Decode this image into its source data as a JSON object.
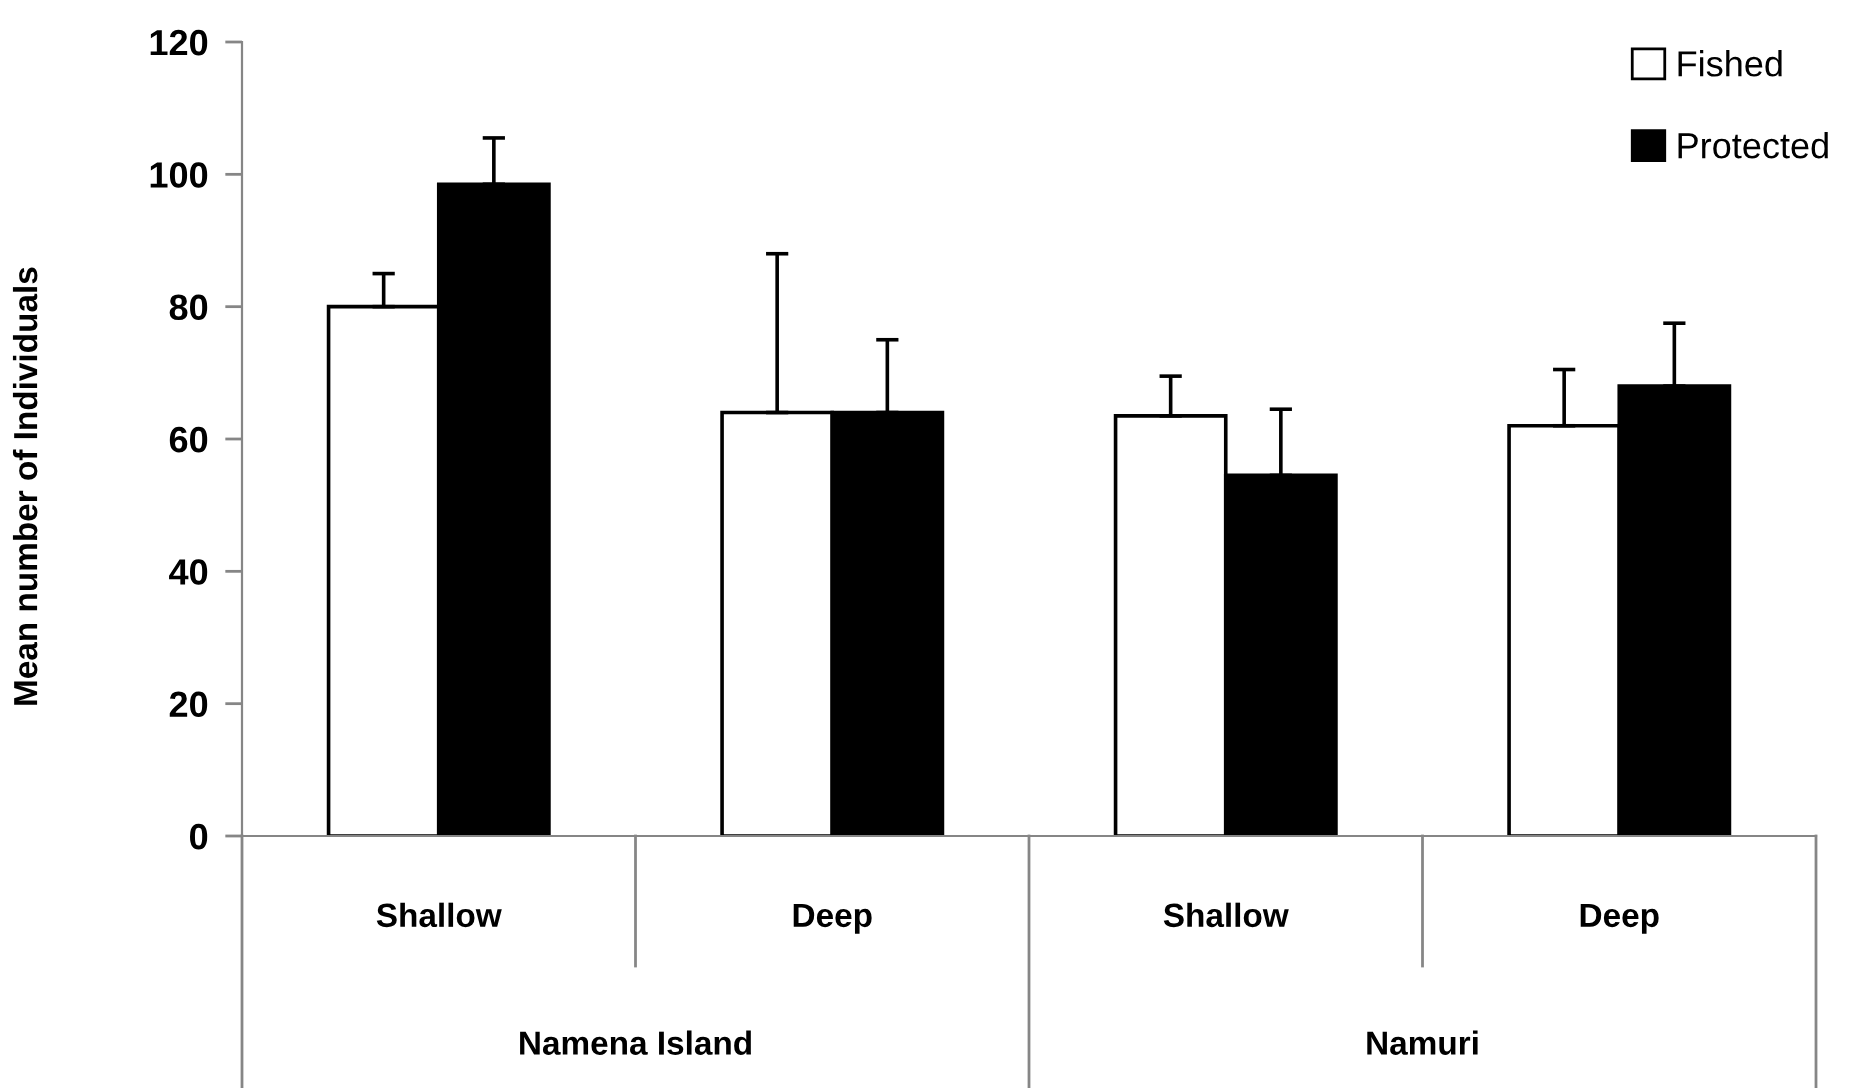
{
  "chart_data": {
    "type": "bar",
    "ylabel": "Mean number of Individuals",
    "categories": [
      "Shallow",
      "Deep",
      "Shallow",
      "Deep"
    ],
    "annotations": [
      "Namena Island",
      "Namuri"
    ],
    "series": [
      {
        "name": "Fished",
        "color": "#ffffff",
        "values": [
          80,
          64,
          63.5,
          62
        ],
        "errors": [
          [
            80,
            85
          ],
          [
            64,
            88
          ],
          [
            63.5,
            69.5
          ],
          [
            62,
            70.5
          ]
        ]
      },
      {
        "name": "Protected",
        "color": "#000000",
        "values": [
          98.5,
          64,
          54.5,
          68
        ],
        "errors": [
          [
            98.5,
            105.5
          ],
          [
            64,
            75
          ],
          [
            54.5,
            64.5
          ],
          [
            68,
            77.5
          ]
        ]
      }
    ],
    "ylim": [
      0,
      120
    ],
    "yticks": [
      0,
      20,
      40,
      60,
      80,
      100,
      120
    ],
    "legend": "top right"
  }
}
